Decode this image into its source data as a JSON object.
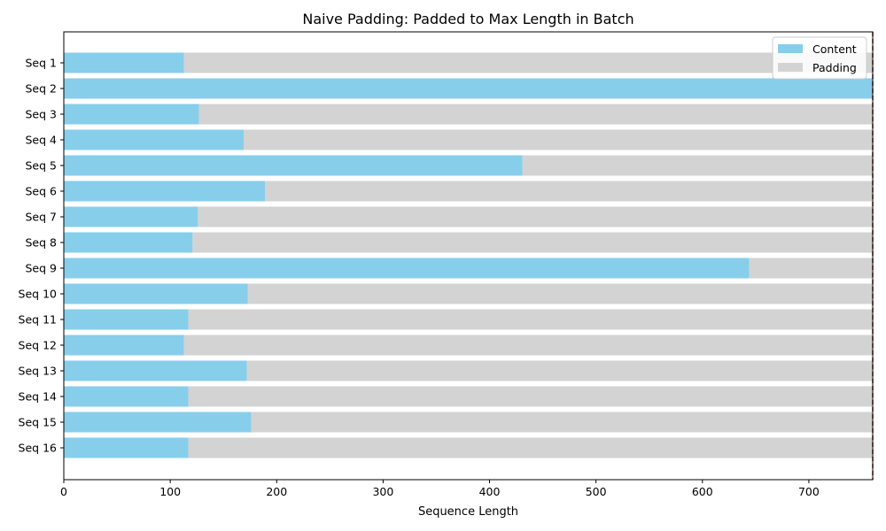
{
  "chart_data": {
    "type": "bar",
    "orientation": "horizontal",
    "stacked": true,
    "title": "Naive Padding: Padded to Max Length in Batch",
    "xlabel": "Sequence Length",
    "ylabel": "",
    "categories": [
      "Seq 1",
      "Seq 2",
      "Seq 3",
      "Seq 4",
      "Seq 5",
      "Seq 6",
      "Seq 7",
      "Seq 8",
      "Seq 9",
      "Seq 10",
      "Seq 11",
      "Seq 12",
      "Seq 13",
      "Seq 14",
      "Seq 15",
      "Seq 16"
    ],
    "max_length": 760,
    "series": [
      {
        "name": "Content",
        "color": "#87ceeb",
        "values": [
          113,
          760,
          127,
          169,
          431,
          189,
          126,
          121,
          644,
          173,
          117,
          113,
          172,
          117,
          176,
          117
        ]
      },
      {
        "name": "Padding",
        "color": "#d3d3d3",
        "values": [
          647,
          0,
          633,
          591,
          329,
          571,
          634,
          639,
          116,
          587,
          643,
          647,
          588,
          643,
          584,
          643
        ]
      }
    ],
    "xlim": [
      0,
      760
    ],
    "xticks": [
      0,
      100,
      200,
      300,
      400,
      500,
      600,
      700
    ],
    "reference_line": {
      "x": 760,
      "color": "#8b0000",
      "style": "dashed"
    },
    "legend": {
      "placement": "top-right",
      "entries": [
        "Content",
        "Padding"
      ]
    },
    "grid": false
  }
}
